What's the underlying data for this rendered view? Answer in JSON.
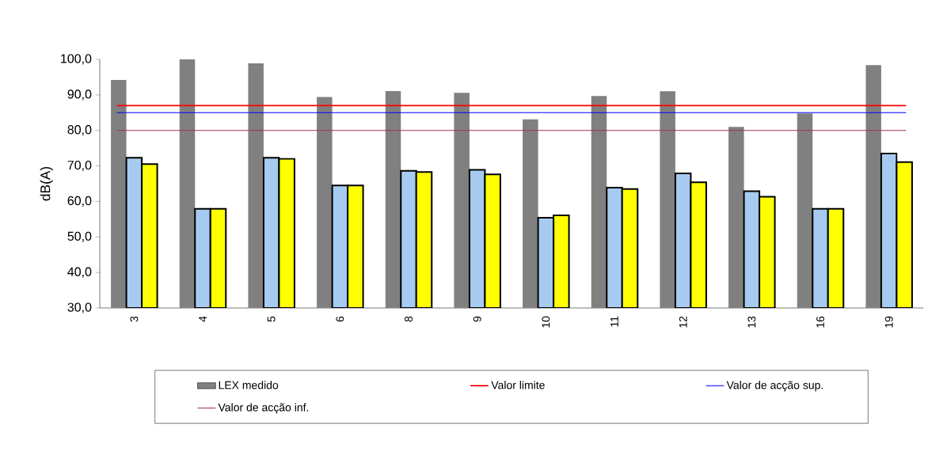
{
  "chart_data": {
    "type": "bar",
    "ylabel": "dB(A)",
    "categories": [
      "3",
      "4",
      "5",
      "6",
      "8",
      "9",
      "10",
      "11",
      "12",
      "13",
      "16",
      "19"
    ],
    "series": [
      {
        "name": "LEX medido",
        "color": "#808080",
        "values": [
          94.2,
          100.0,
          98.9,
          89.4,
          91.1,
          90.6,
          83.1,
          89.7,
          91.0,
          81.0,
          84.8,
          98.4
        ]
      },
      {
        "color": "#a6caf0",
        "values": [
          72.3,
          57.9,
          72.3,
          64.5,
          68.6,
          68.9,
          55.4,
          63.9,
          67.9,
          62.9,
          57.9,
          73.5
        ]
      },
      {
        "color": "#ffff00",
        "values": [
          70.5,
          57.9,
          72.0,
          64.5,
          68.3,
          67.6,
          56.1,
          63.5,
          65.4,
          61.3,
          57.9,
          71.1
        ]
      }
    ],
    "ylim": [
      30,
      100
    ],
    "yticks": [
      {
        "value": 30,
        "label": "30,0"
      },
      {
        "value": 40,
        "label": "40,0"
      },
      {
        "value": 50,
        "label": "50,0"
      },
      {
        "value": 60,
        "label": "60,0"
      },
      {
        "value": 70,
        "label": "70,0"
      },
      {
        "value": 80,
        "label": "80,0"
      },
      {
        "value": 90,
        "label": "90,0"
      },
      {
        "value": 100,
        "label": "100,0"
      }
    ],
    "ref_lines": [
      {
        "axis": "y",
        "value": 87,
        "label": "Valor limite",
        "color": "#ff0000"
      },
      {
        "axis": "y",
        "value": 85,
        "label": "Valor de acção sup.",
        "color": "#0000ff"
      },
      {
        "axis": "y",
        "value": 80,
        "label": "Valor de acção inf.",
        "color": "#993366"
      }
    ],
    "legend": "bottom"
  }
}
